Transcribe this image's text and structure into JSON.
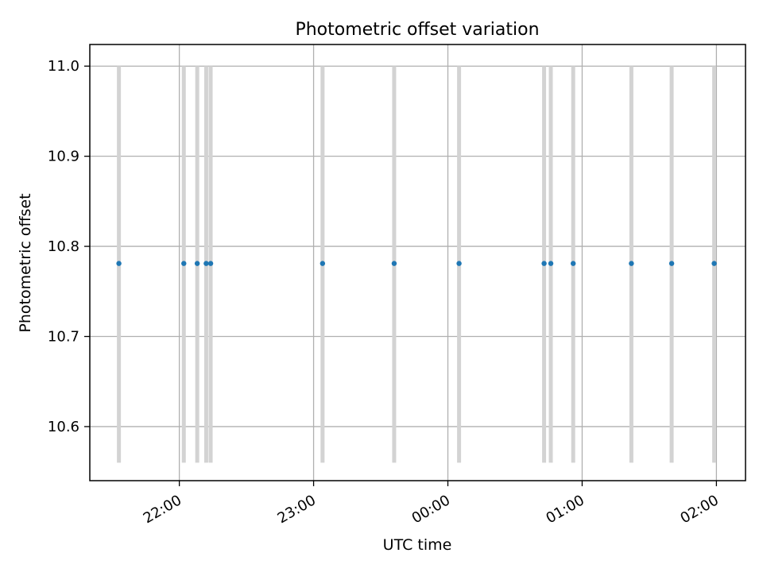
{
  "chart_data": {
    "type": "scatter",
    "title": "Photometric offset variation",
    "xlabel": "UTC time",
    "ylabel": "Photometric offset",
    "x_axis_type": "time",
    "xlim": [
      "21:20",
      "02:13"
    ],
    "ylim": [
      10.54,
      11.024
    ],
    "x_ticks": [
      "22:00",
      "23:00",
      "00:00",
      "01:00",
      "02:00"
    ],
    "y_ticks": [
      "10.6",
      "10.7",
      "10.8",
      "10.9",
      "11.0"
    ],
    "grid": true,
    "legend": "none",
    "series": [
      {
        "x": [
          "21:33",
          "22:02",
          "22:08",
          "22:12",
          "22:14",
          "23:04",
          "23:36",
          "00:05",
          "00:43",
          "00:46",
          "00:56",
          "01:22",
          "01:40",
          "01:59"
        ],
        "y": [
          10.781,
          10.781,
          10.781,
          10.781,
          10.781,
          10.781,
          10.781,
          10.781,
          10.781,
          10.781,
          10.781,
          10.781,
          10.781,
          10.781
        ],
        "error_low": 10.56,
        "error_high": 11.0
      }
    ],
    "colors": {
      "points": "#1f77b4",
      "error_bars": "#d3d3d3",
      "grid": "#b0b0b0",
      "axes": "#000000"
    }
  }
}
